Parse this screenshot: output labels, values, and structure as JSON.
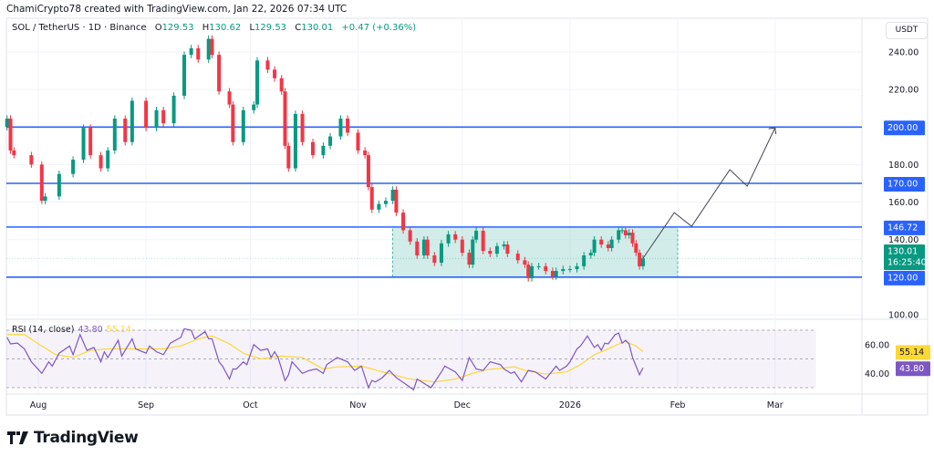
{
  "credit": "ChamiCrypto78 created with TradingView.com, Jan 22, 2026 07:34 UTC",
  "legend": {
    "symbol": "SOL / TetherUS · 1D · Binance",
    "open_label": "O",
    "open": "129.53",
    "high_label": "H",
    "high": "130.62",
    "low_label": "L",
    "low": "129.53",
    "close_label": "C",
    "close": "130.01",
    "change": "+0.47 (+0.36%)"
  },
  "currency": "USDT",
  "rsi_legend": {
    "title": "RSI (14, close)",
    "rsi": "43.80",
    "ma": "55.14"
  },
  "logo": "TradingView",
  "colors": {
    "up": "#089981",
    "down": "#f23645",
    "level": "#2962ff",
    "zone": "#b2dfdb",
    "rsi": "#7e57c2",
    "rsi_ma": "#fdd835",
    "last_price": "#089981",
    "projection": "#434651"
  },
  "chart_data": {
    "type": "candlestick",
    "symbol": "SOL/USDT",
    "interval": "1D",
    "ylim": [
      95,
      252
    ],
    "price_ticks": [
      "240.00",
      "220.00",
      "200.00",
      "180.00",
      "160.00",
      "140.00",
      "100.00"
    ],
    "time_ticks": [
      {
        "label": "Aug",
        "date": "2025-08-01"
      },
      {
        "label": "Sep",
        "date": "2025-09-01"
      },
      {
        "label": "Oct",
        "date": "2025-10-01"
      },
      {
        "label": "Nov",
        "date": "2025-11-01"
      },
      {
        "label": "Dec",
        "date": "2025-12-01"
      },
      {
        "label": "2026",
        "date": "2026-01-01"
      },
      {
        "label": "Feb",
        "date": "2026-02-01"
      },
      {
        "label": "Mar",
        "date": "2026-03-01"
      }
    ],
    "closes": [
      [
        "2025-07-23",
        204.5
      ],
      [
        "2025-07-24",
        187.5
      ],
      [
        "2025-07-25",
        185
      ],
      [
        "2025-07-30",
        180
      ],
      [
        "2025-08-02",
        160.7
      ],
      [
        "2025-08-03",
        163
      ],
      [
        "2025-08-07",
        175
      ],
      [
        "2025-08-11",
        182.6
      ],
      [
        "2025-08-14",
        199.6
      ],
      [
        "2025-08-16",
        185
      ],
      [
        "2025-08-19",
        178
      ],
      [
        "2025-08-21",
        187.5
      ],
      [
        "2025-08-23",
        204.5
      ],
      [
        "2025-08-26",
        192
      ],
      [
        "2025-08-28",
        214
      ],
      [
        "2025-09-01",
        199.6
      ],
      [
        "2025-09-04",
        209
      ],
      [
        "2025-09-06",
        202
      ],
      [
        "2025-09-09",
        216.7
      ],
      [
        "2025-09-12",
        238.5
      ],
      [
        "2025-09-14",
        242
      ],
      [
        "2025-09-16",
        236
      ],
      [
        "2025-09-19",
        247
      ],
      [
        "2025-09-20",
        238.5
      ],
      [
        "2025-09-22",
        219
      ],
      [
        "2025-09-25",
        212
      ],
      [
        "2025-09-26",
        192
      ],
      [
        "2025-09-29",
        209
      ],
      [
        "2025-10-02",
        212
      ],
      [
        "2025-10-03",
        235.5
      ],
      [
        "2025-10-06",
        230.6
      ],
      [
        "2025-10-08",
        226
      ],
      [
        "2025-10-10",
        219
      ],
      [
        "2025-10-11",
        190
      ],
      [
        "2025-10-12",
        178
      ],
      [
        "2025-10-14",
        207
      ],
      [
        "2025-10-16",
        192
      ],
      [
        "2025-10-19",
        185
      ],
      [
        "2025-10-22",
        190
      ],
      [
        "2025-10-24",
        195
      ],
      [
        "2025-10-27",
        204.5
      ],
      [
        "2025-10-29",
        197
      ],
      [
        "2025-11-01",
        187.5
      ],
      [
        "2025-11-03",
        185
      ],
      [
        "2025-11-04",
        168
      ],
      [
        "2025-11-05",
        156
      ],
      [
        "2025-11-07",
        159
      ],
      [
        "2025-11-09",
        160.7
      ],
      [
        "2025-11-11",
        166.6
      ],
      [
        "2025-11-12",
        154.4
      ],
      [
        "2025-11-14",
        145
      ],
      [
        "2025-11-16",
        139
      ],
      [
        "2025-11-18",
        131.6
      ],
      [
        "2025-11-20",
        140
      ],
      [
        "2025-11-21",
        131.6
      ],
      [
        "2025-11-23",
        127.7
      ],
      [
        "2025-11-25",
        138
      ],
      [
        "2025-11-27",
        142.8
      ],
      [
        "2025-11-29",
        140
      ],
      [
        "2025-12-01",
        133
      ],
      [
        "2025-12-03",
        126.7
      ],
      [
        "2025-12-04",
        140
      ],
      [
        "2025-12-05",
        144.7
      ],
      [
        "2025-12-07",
        134
      ],
      [
        "2025-12-09",
        132.5
      ],
      [
        "2025-12-11",
        136.5
      ],
      [
        "2025-12-13",
        137.4
      ],
      [
        "2025-12-14",
        132.5
      ],
      [
        "2025-12-17",
        129
      ],
      [
        "2025-12-19",
        126.7
      ],
      [
        "2025-12-20",
        119.4
      ],
      [
        "2025-12-21",
        125.8
      ],
      [
        "2025-12-23",
        125.8
      ],
      [
        "2025-12-25",
        123.3
      ],
      [
        "2025-12-27",
        120.4
      ],
      [
        "2025-12-28",
        123.3
      ],
      [
        "2025-12-30",
        124.3
      ],
      [
        "2026-01-01",
        124.3
      ],
      [
        "2026-01-03",
        125.8
      ],
      [
        "2026-01-05",
        131.6
      ],
      [
        "2026-01-07",
        133
      ],
      [
        "2026-01-08",
        140
      ],
      [
        "2026-01-10",
        137.4
      ],
      [
        "2026-01-12",
        135.5
      ],
      [
        "2026-01-13",
        140
      ],
      [
        "2026-01-15",
        145
      ],
      [
        "2026-01-16",
        145
      ],
      [
        "2026-01-17",
        142.3
      ],
      [
        "2026-01-18",
        143.7
      ],
      [
        "2026-01-19",
        138
      ],
      [
        "2026-01-20",
        133
      ],
      [
        "2026-01-21",
        125.8
      ],
      [
        "2026-01-22",
        130.01
      ]
    ],
    "first_open": 200,
    "levels": [
      {
        "price": 200,
        "label": "200.00"
      },
      {
        "price": 170,
        "label": "170.00"
      },
      {
        "price": 146.72,
        "label": "146.72"
      },
      {
        "price": 120,
        "label": "120.00"
      }
    ],
    "last_price": {
      "price": 130.01,
      "label": "130.01",
      "countdown": "16:25:40"
    },
    "zone": {
      "from": "2025-11-11",
      "to": "2026-02-01",
      "top": 146.72,
      "bottom": 120
    },
    "projection": [
      [
        "2026-01-22",
        130
      ],
      [
        "2026-01-31",
        154.4
      ],
      [
        "2026-02-05",
        147.1
      ],
      [
        "2026-02-16",
        177.3
      ],
      [
        "2026-02-21",
        168.5
      ],
      [
        "2026-03-01",
        199.6
      ]
    ],
    "rsi": {
      "period": 14,
      "bands": [
        70,
        50,
        30
      ],
      "axis_ticks": [
        "60.00",
        "40.00"
      ],
      "values": [
        [
          "2025-07-23",
          65
        ],
        [
          "2025-07-24",
          60.5
        ],
        [
          "2025-07-26",
          61
        ],
        [
          "2025-07-28",
          57
        ],
        [
          "2025-07-30",
          48
        ],
        [
          "2025-08-02",
          40
        ],
        [
          "2025-08-04",
          48
        ],
        [
          "2025-08-05",
          45
        ],
        [
          "2025-08-07",
          54
        ],
        [
          "2025-08-10",
          59
        ],
        [
          "2025-08-11",
          53
        ],
        [
          "2025-08-13",
          67
        ],
        [
          "2025-08-15",
          56
        ],
        [
          "2025-08-17",
          58
        ],
        [
          "2025-08-19",
          48
        ],
        [
          "2025-08-20",
          55
        ],
        [
          "2025-08-21",
          51
        ],
        [
          "2025-08-24",
          63
        ],
        [
          "2025-08-25",
          52
        ],
        [
          "2025-08-28",
          64
        ],
        [
          "2025-08-29",
          57
        ],
        [
          "2025-09-01",
          54
        ],
        [
          "2025-09-02",
          59
        ],
        [
          "2025-09-04",
          55
        ],
        [
          "2025-09-06",
          53
        ],
        [
          "2025-09-08",
          61
        ],
        [
          "2025-09-11",
          65
        ],
        [
          "2025-09-12",
          71
        ],
        [
          "2025-09-14",
          70
        ],
        [
          "2025-09-15",
          64
        ],
        [
          "2025-09-18",
          69
        ],
        [
          "2025-09-19",
          64
        ],
        [
          "2025-09-20",
          64
        ],
        [
          "2025-09-22",
          48
        ],
        [
          "2025-09-23",
          45
        ],
        [
          "2025-09-25",
          36
        ],
        [
          "2025-09-26",
          43
        ],
        [
          "2025-09-27",
          43
        ],
        [
          "2025-09-29",
          48
        ],
        [
          "2025-09-30",
          46
        ],
        [
          "2025-10-02",
          60
        ],
        [
          "2025-10-04",
          56
        ],
        [
          "2025-10-06",
          57
        ],
        [
          "2025-10-07",
          51
        ],
        [
          "2025-10-08",
          55
        ],
        [
          "2025-10-09",
          51
        ],
        [
          "2025-10-11",
          35
        ],
        [
          "2025-10-12",
          39
        ],
        [
          "2025-10-13",
          48
        ],
        [
          "2025-10-16",
          40
        ],
        [
          "2025-10-18",
          42
        ],
        [
          "2025-10-20",
          43
        ],
        [
          "2025-10-22",
          40
        ],
        [
          "2025-10-23",
          46
        ],
        [
          "2025-10-26",
          51
        ],
        [
          "2025-10-29",
          48
        ],
        [
          "2025-10-31",
          42
        ],
        [
          "2025-11-02",
          45
        ],
        [
          "2025-11-04",
          30
        ],
        [
          "2025-11-05",
          35
        ],
        [
          "2025-11-06",
          34
        ],
        [
          "2025-11-08",
          37
        ],
        [
          "2025-11-10",
          42
        ],
        [
          "2025-11-12",
          37
        ],
        [
          "2025-11-15",
          32
        ],
        [
          "2025-11-17",
          28.5
        ],
        [
          "2025-11-18",
          36
        ],
        [
          "2025-11-22",
          30
        ],
        [
          "2025-11-25",
          41
        ],
        [
          "2025-11-26",
          45
        ],
        [
          "2025-11-29",
          41
        ],
        [
          "2025-12-01",
          35
        ],
        [
          "2025-12-03",
          51
        ],
        [
          "2025-12-05",
          43
        ],
        [
          "2025-12-07",
          42
        ],
        [
          "2025-12-09",
          48
        ],
        [
          "2025-12-12",
          46
        ],
        [
          "2025-12-13",
          43
        ],
        [
          "2025-12-15",
          40
        ],
        [
          "2025-12-16",
          41
        ],
        [
          "2025-12-18",
          34
        ],
        [
          "2025-12-20",
          42
        ],
        [
          "2025-12-22",
          41
        ],
        [
          "2025-12-25",
          36
        ],
        [
          "2025-12-28",
          45
        ],
        [
          "2025-12-29",
          42
        ],
        [
          "2025-12-31",
          45
        ],
        [
          "2026-01-01",
          48
        ],
        [
          "2026-01-03",
          57
        ],
        [
          "2026-01-04",
          59
        ],
        [
          "2026-01-06",
          66
        ],
        [
          "2026-01-08",
          58
        ],
        [
          "2026-01-09",
          60
        ],
        [
          "2026-01-10",
          56
        ],
        [
          "2026-01-11",
          61
        ],
        [
          "2026-01-12",
          60.5
        ],
        [
          "2026-01-14",
          67
        ],
        [
          "2026-01-15",
          68
        ],
        [
          "2026-01-16",
          61
        ],
        [
          "2026-01-17",
          63
        ],
        [
          "2026-01-18",
          60.5
        ],
        [
          "2026-01-19",
          51
        ],
        [
          "2026-01-21",
          39
        ],
        [
          "2026-01-22",
          43.8
        ]
      ],
      "ma_values": [
        [
          "2025-07-23",
          67
        ],
        [
          "2025-07-28",
          67
        ],
        [
          "2025-08-01",
          60.5
        ],
        [
          "2025-08-06",
          53
        ],
        [
          "2025-08-11",
          51
        ],
        [
          "2025-08-16",
          56
        ],
        [
          "2025-08-21",
          57
        ],
        [
          "2025-08-29",
          57
        ],
        [
          "2025-09-06",
          57
        ],
        [
          "2025-09-11",
          59
        ],
        [
          "2025-09-16",
          64
        ],
        [
          "2025-09-20",
          66
        ],
        [
          "2025-09-25",
          60.5
        ],
        [
          "2025-09-29",
          54
        ],
        [
          "2025-10-04",
          50
        ],
        [
          "2025-10-10",
          52
        ],
        [
          "2025-10-16",
          51
        ],
        [
          "2025-10-22",
          43
        ],
        [
          "2025-10-26",
          44.5
        ],
        [
          "2025-11-02",
          45
        ],
        [
          "2025-11-08",
          41
        ],
        [
          "2025-11-16",
          36
        ],
        [
          "2025-11-23",
          34
        ],
        [
          "2025-11-29",
          36
        ],
        [
          "2025-12-04",
          40
        ],
        [
          "2025-12-08",
          42.5
        ],
        [
          "2025-12-16",
          44.5
        ],
        [
          "2025-12-19",
          42
        ],
        [
          "2025-12-25",
          39.5
        ],
        [
          "2025-12-31",
          41
        ],
        [
          "2026-01-04",
          46
        ],
        [
          "2026-01-08",
          53
        ],
        [
          "2026-01-12",
          57
        ],
        [
          "2026-01-16",
          61.5
        ],
        [
          "2026-01-17",
          62
        ],
        [
          "2026-01-20",
          59
        ],
        [
          "2026-01-22",
          55.14
        ]
      ]
    }
  }
}
